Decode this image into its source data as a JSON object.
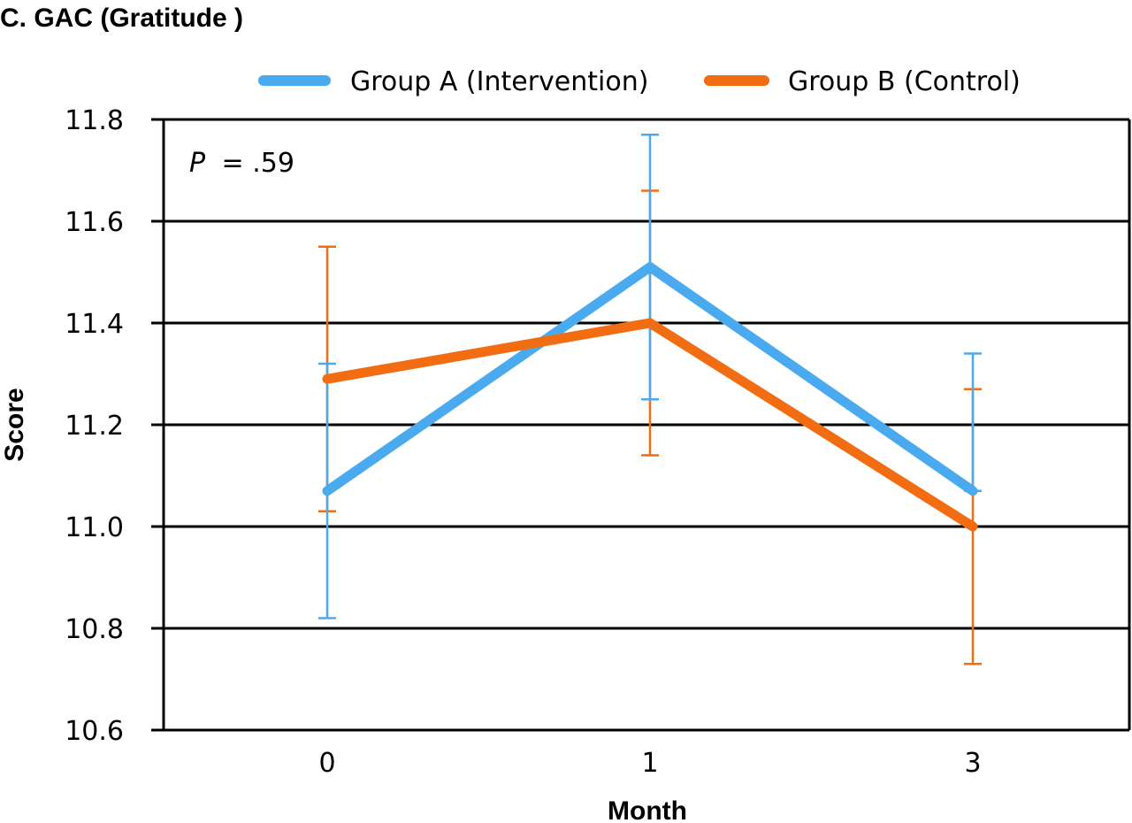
{
  "chart_data": {
    "type": "line",
    "title": "C. GAC (Gratitude )",
    "xlabel": "Month",
    "ylabel": "Score",
    "categories": [
      "0",
      "1",
      "3"
    ],
    "ylim": [
      10.6,
      11.8
    ],
    "yticks": [
      "10.6",
      "10.8",
      "11.0",
      "11.2",
      "11.4",
      "11.6",
      "11.8"
    ],
    "grid": true,
    "legend_position": "top",
    "annotation": {
      "p_symbol": "P",
      "p_text": "= .59"
    },
    "series": [
      {
        "name": "Group A (Intervention)",
        "color": "#4aaaf0",
        "values": [
          11.07,
          11.51,
          11.07
        ],
        "error_low": [
          10.82,
          11.25,
          11.07
        ],
        "error_high": [
          11.32,
          11.77,
          11.34
        ]
      },
      {
        "name": "Group B (Control)",
        "color": "#f26c12",
        "values": [
          11.29,
          11.4,
          11.0
        ],
        "error_low": [
          11.03,
          11.14,
          10.73
        ],
        "error_high": [
          11.55,
          11.66,
          11.27
        ]
      }
    ]
  }
}
